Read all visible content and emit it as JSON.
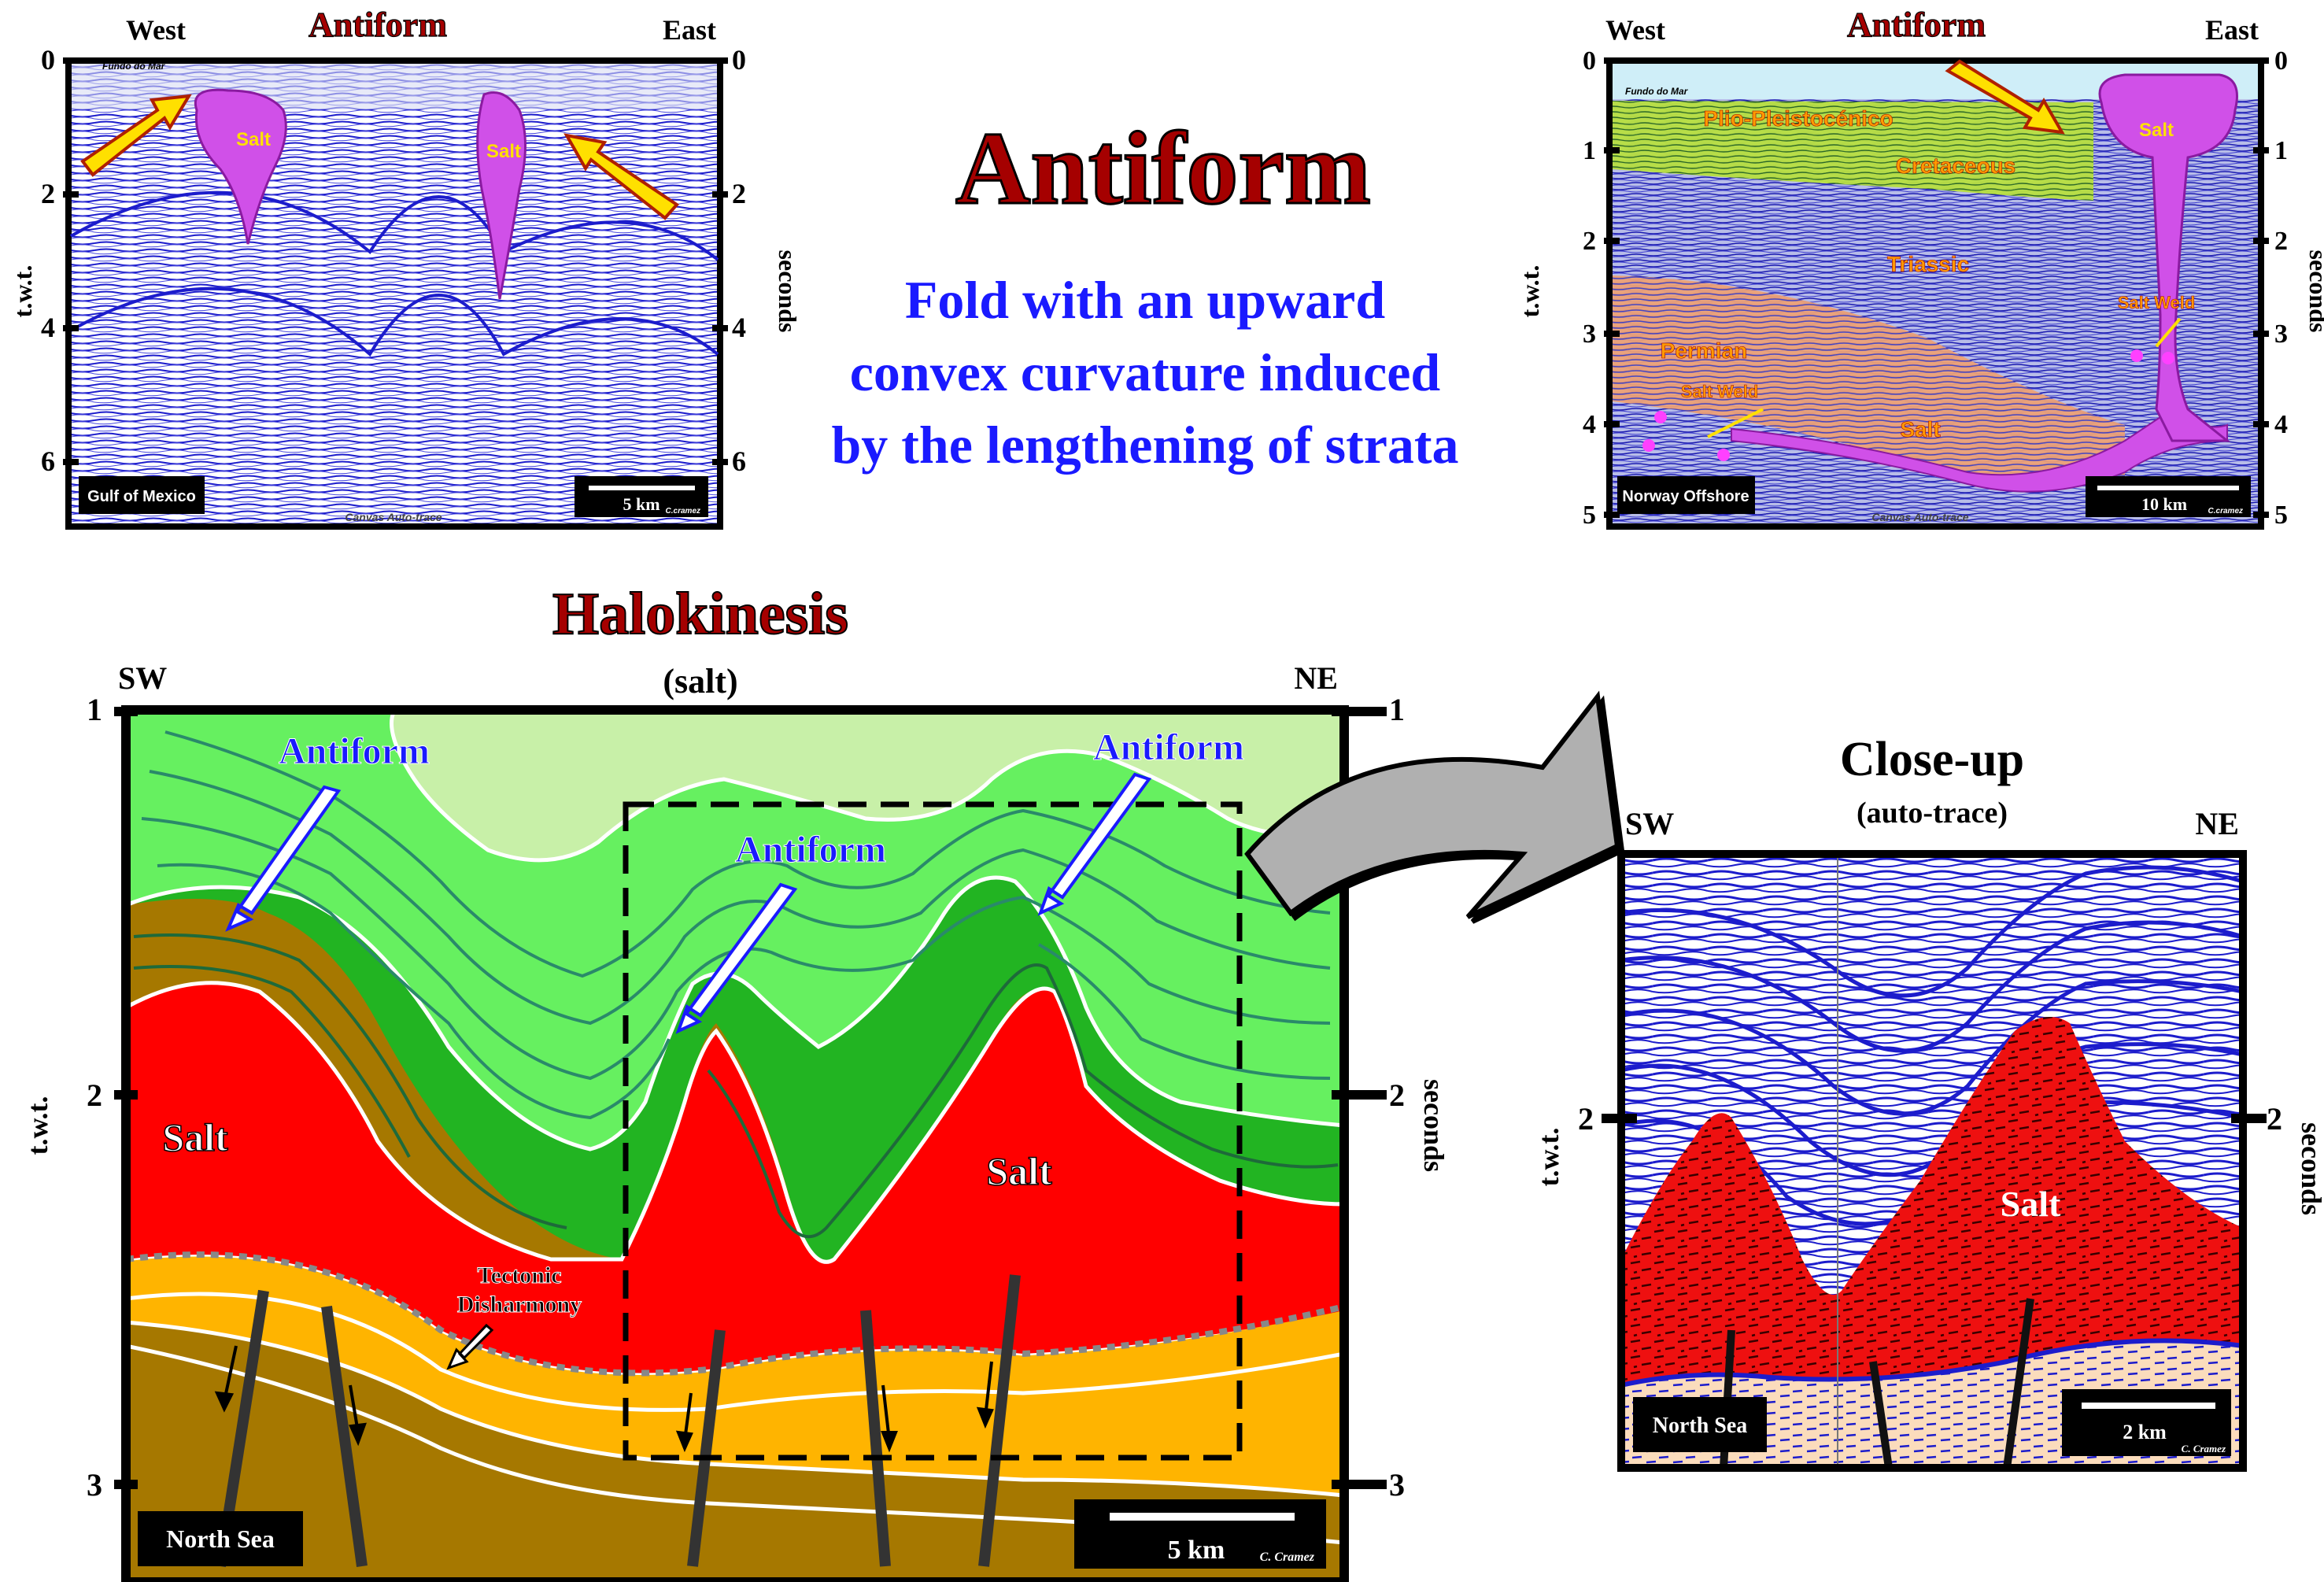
{
  "main_title": "Antiform",
  "definition": [
    "Fold with an upward",
    "convex curvature induced",
    "by the lengthening of strata"
  ],
  "panel_gom": {
    "title": "Antiform",
    "west": "West",
    "east": "East",
    "left_ticks": [
      "0",
      "2",
      "4",
      "6"
    ],
    "right_ticks": [
      "0",
      "2",
      "4",
      "6"
    ],
    "left_axis": "t.w.t.",
    "right_axis": "seconds",
    "seafloor": "Fundo do Mar",
    "salt_labels": [
      "Salt",
      "Salt"
    ],
    "location": "Gulf of Mexico",
    "scale": "5 km",
    "credit_small": "C.cramez",
    "footer": "Canvas Auto-trace"
  },
  "panel_norway": {
    "title": "Antiform",
    "west": "West",
    "east": "East",
    "left_ticks": [
      "0",
      "1",
      "2",
      "3",
      "4",
      "5"
    ],
    "right_ticks": [
      "0",
      "1",
      "2",
      "3",
      "4",
      "5"
    ],
    "left_axis": "t.w.t.",
    "right_axis": "seconds",
    "seafloor": "Fundo do Mar",
    "units": [
      "Plio-Pleistocénico",
      "Cretaceous",
      "Triassic",
      "Permian",
      "Salt"
    ],
    "salt_top": "Salt",
    "salt_weld_labels": [
      "Salt Weld",
      "Salt Weld"
    ],
    "location": "Norway Offshore",
    "scale": "10 km",
    "credit_small": "C.cramez",
    "footer": "Canvas Auto-trace"
  },
  "panel_halokinesis": {
    "title": "Halokinesis",
    "subtitle": "(salt)",
    "sw": "SW",
    "ne": "NE",
    "left_ticks": [
      "1",
      "2",
      "3"
    ],
    "right_ticks": [
      "1",
      "2",
      "3"
    ],
    "left_axis": "t.w.t.",
    "right_axis": "seconds",
    "antiform_labels": [
      "Antiform",
      "Antiform",
      "Antiform"
    ],
    "salt_labels": [
      "Salt",
      "Salt"
    ],
    "disharmony": [
      "Tectonic",
      "Disharmony"
    ],
    "location": "North Sea",
    "scale": "5 km",
    "credit": "C. Cramez"
  },
  "panel_closeup": {
    "title": "Close-up",
    "subtitle": "(auto-trace)",
    "sw": "SW",
    "ne": "NE",
    "tick": "2",
    "left_axis": "t.w.t.",
    "right_axis": "seconds",
    "salt_label": "Salt",
    "location": "North Sea",
    "scale": "2 km",
    "credit": "C. Cramez"
  },
  "colors": {
    "title_red": "#a50000",
    "definition_blue": "#1a1aff",
    "salt_red": "#ff0000",
    "salt_magenta": "#d050e8",
    "green_light": "#c8f0a8",
    "green_mid": "#66f060",
    "green_dark": "#22b422",
    "orange": "#ffb400",
    "brown": "#a67800",
    "seismic_blue": "#1c1ccc",
    "peach": "#fbdcbc"
  }
}
